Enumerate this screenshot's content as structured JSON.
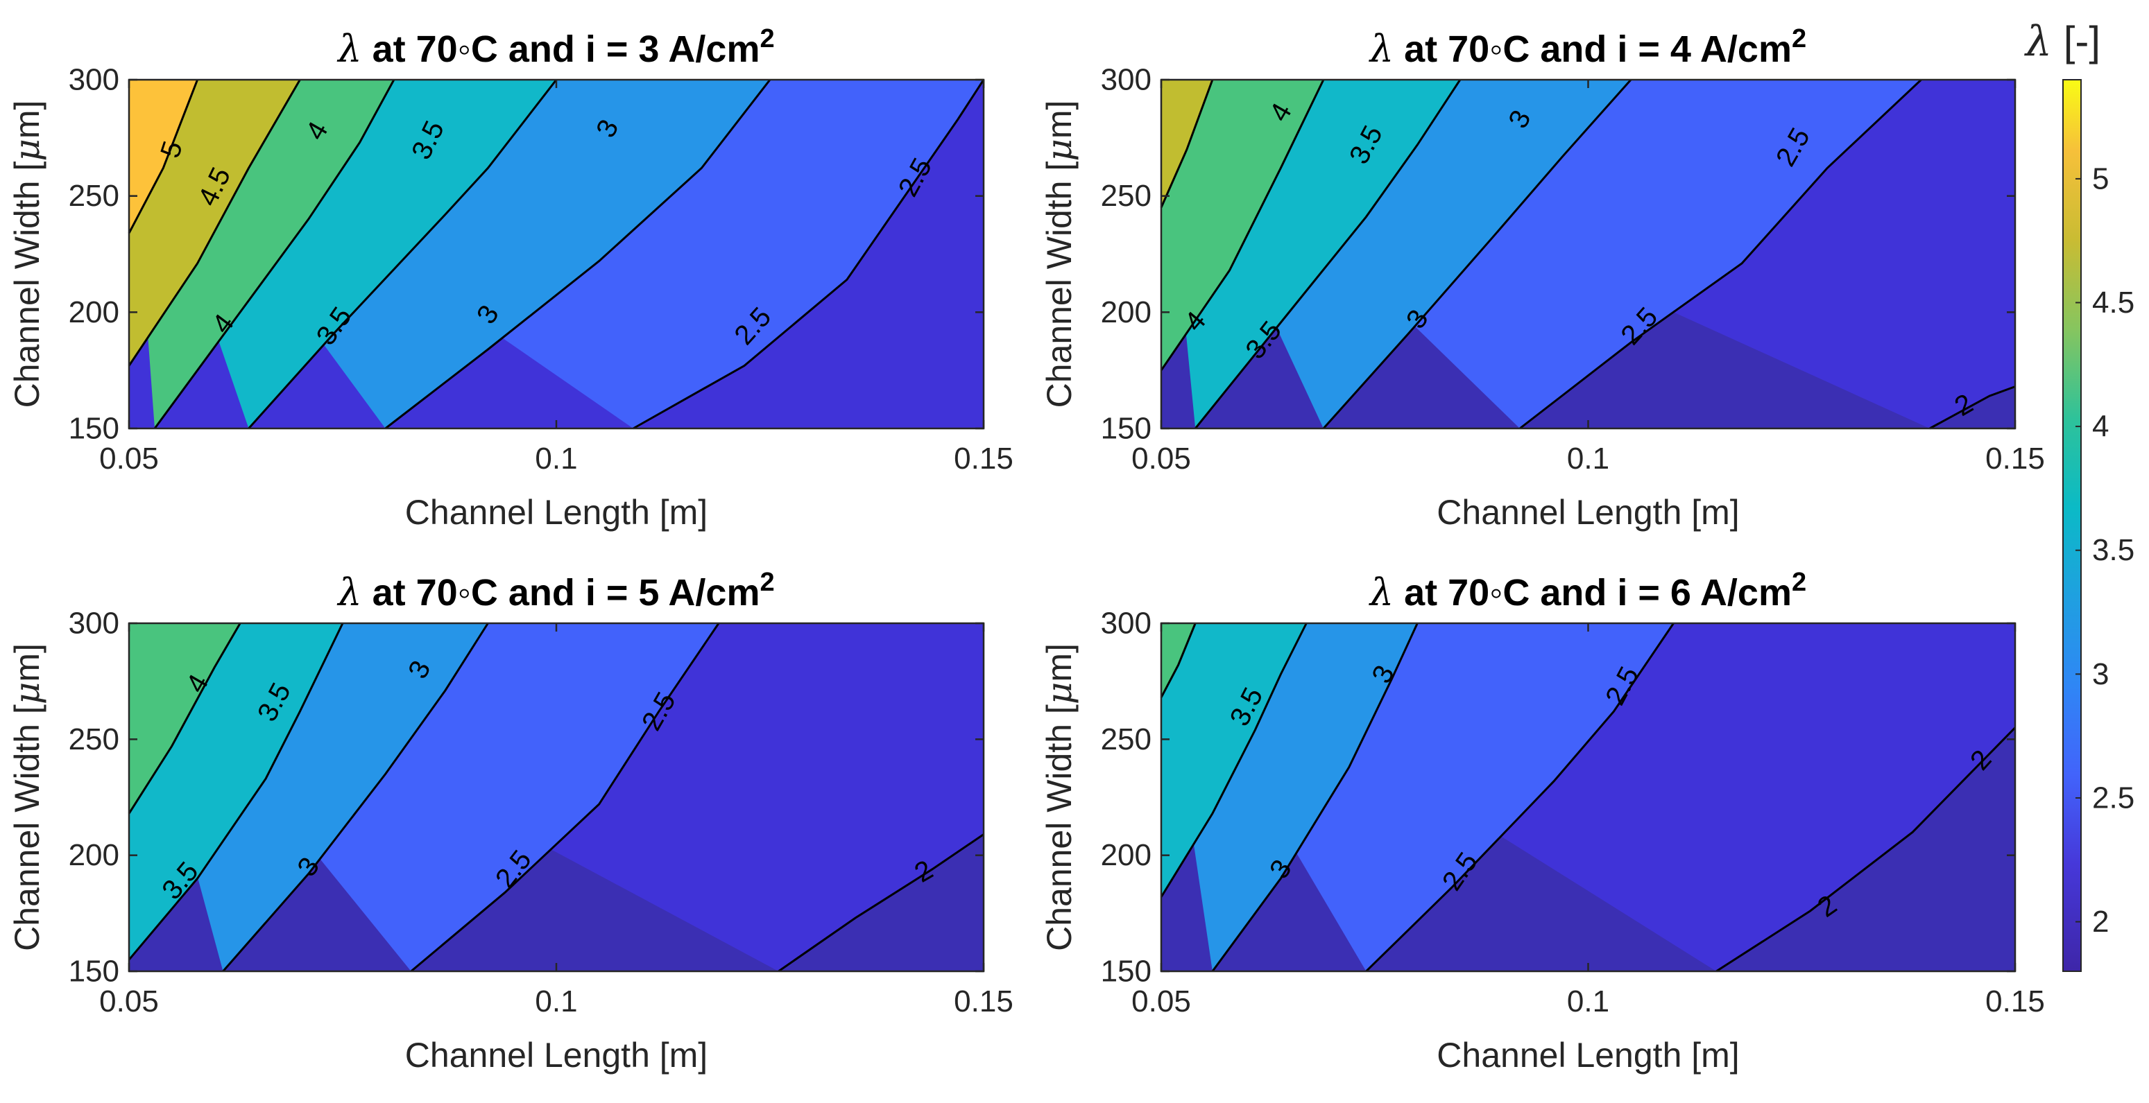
{
  "chart_data": [
    {
      "type": "contour",
      "title_prefix": "λ",
      "title_text": " at 70◦C and i = 3 A/cm",
      "title_sup": "2",
      "xlabel": "Channel Length [m]",
      "ylabel_main": "Channel Width [",
      "ylabel_mu": "μ",
      "ylabel_end": "m]",
      "xlim": [
        0.05,
        0.15
      ],
      "ylim": [
        150,
        300
      ],
      "xticks": [
        "0.05",
        "0.1",
        "0.15"
      ],
      "yticks": [
        "150",
        "200",
        "250",
        "300"
      ],
      "levels": [
        5,
        4.5,
        4,
        3.5,
        3,
        2.5
      ],
      "contour_lines": [
        {
          "level": "5",
          "points": [
            [
              0.05,
              234
            ],
            [
              0.054,
              262
            ],
            [
              0.058,
              300
            ]
          ]
        },
        {
          "level": "4.5",
          "points": [
            [
              0.05,
              177
            ],
            [
              0.058,
              221
            ],
            [
              0.064,
              262
            ],
            [
              0.07,
              300
            ]
          ]
        },
        {
          "level": "4",
          "points": [
            [
              0.053,
              150
            ],
            [
              0.061,
              190
            ],
            [
              0.071,
              240
            ],
            [
              0.077,
              273
            ],
            [
              0.081,
              300
            ]
          ]
        },
        {
          "level": "3.5",
          "points": [
            [
              0.064,
              150
            ],
            [
              0.074,
              191
            ],
            [
              0.087,
              242
            ],
            [
              0.092,
              262
            ],
            [
              0.1,
              300
            ]
          ]
        },
        {
          "level": "3",
          "points": [
            [
              0.08,
              150
            ],
            [
              0.092,
              184
            ],
            [
              0.105,
              222
            ],
            [
              0.117,
              262
            ],
            [
              0.125,
              300
            ]
          ]
        },
        {
          "level": "2.5",
          "points": [
            [
              0.109,
              150
            ],
            [
              0.122,
              177
            ],
            [
              0.134,
              214
            ],
            [
              0.147,
              283
            ],
            [
              0.15,
              300
            ]
          ]
        }
      ],
      "labels": [
        {
          "text": "5",
          "x": 0.055,
          "y": 270,
          "rot": -72
        },
        {
          "text": "4.5",
          "x": 0.06,
          "y": 254,
          "rot": -64
        },
        {
          "text": "4",
          "x": 0.072,
          "y": 278,
          "rot": -60
        },
        {
          "text": "4",
          "x": 0.061,
          "y": 195,
          "rot": -53
        },
        {
          "text": "3.5",
          "x": 0.085,
          "y": 274,
          "rot": -64
        },
        {
          "text": "3.5",
          "x": 0.074,
          "y": 194,
          "rot": -55
        },
        {
          "text": "3",
          "x": 0.106,
          "y": 279,
          "rot": -63
        },
        {
          "text": "3",
          "x": 0.092,
          "y": 199,
          "rot": -57
        },
        {
          "text": "2.5",
          "x": 0.142,
          "y": 258,
          "rot": -61
        },
        {
          "text": "2.5",
          "x": 0.123,
          "y": 194,
          "rot": -48
        }
      ]
    },
    {
      "type": "contour",
      "title_prefix": "λ",
      "title_text": " at 70◦C and i = 4 A/cm",
      "title_sup": "2",
      "xlabel": "Channel Length [m]",
      "ylabel_main": "Channel Width [",
      "ylabel_mu": "μ",
      "ylabel_end": "m]",
      "xlim": [
        0.05,
        0.15
      ],
      "ylim": [
        150,
        300
      ],
      "xticks": [
        "0.05",
        "0.1",
        "0.15"
      ],
      "yticks": [
        "150",
        "200",
        "250",
        "300"
      ],
      "levels": [
        4.5,
        4,
        3.5,
        3,
        2.5,
        2
      ],
      "contour_lines": [
        {
          "level": "4.5",
          "points": [
            [
              0.05,
              245
            ],
            [
              0.053,
              270
            ],
            [
              0.056,
              300
            ]
          ]
        },
        {
          "level": "4",
          "points": [
            [
              0.05,
              175
            ],
            [
              0.058,
              218
            ],
            [
              0.064,
              262
            ],
            [
              0.069,
              300
            ]
          ]
        },
        {
          "level": "3.5",
          "points": [
            [
              0.054,
              150
            ],
            [
              0.063,
              191
            ],
            [
              0.074,
              241
            ],
            [
              0.08,
              272
            ],
            [
              0.085,
              300
            ]
          ]
        },
        {
          "level": "3",
          "points": [
            [
              0.069,
              150
            ],
            [
              0.079,
              191
            ],
            [
              0.089,
              233
            ],
            [
              0.097,
              267
            ],
            [
              0.105,
              300
            ]
          ]
        },
        {
          "level": "2.5",
          "points": [
            [
              0.092,
              150
            ],
            [
              0.105,
              187
            ],
            [
              0.118,
              221
            ],
            [
              0.128,
              262
            ],
            [
              0.139,
              300
            ]
          ]
        },
        {
          "level": "2",
          "points": [
            [
              0.14,
              150
            ],
            [
              0.147,
              164
            ],
            [
              0.15,
              168
            ]
          ]
        }
      ],
      "labels": [
        {
          "text": "4",
          "x": 0.064,
          "y": 286,
          "rot": -60
        },
        {
          "text": "4",
          "x": 0.054,
          "y": 196,
          "rot": -50
        },
        {
          "text": "3.5",
          "x": 0.074,
          "y": 272,
          "rot": -62
        },
        {
          "text": "3.5",
          "x": 0.062,
          "y": 188,
          "rot": -52
        },
        {
          "text": "3",
          "x": 0.092,
          "y": 283,
          "rot": -62
        },
        {
          "text": "3",
          "x": 0.08,
          "y": 197,
          "rot": -56
        },
        {
          "text": "2.5",
          "x": 0.124,
          "y": 271,
          "rot": -60
        },
        {
          "text": "2.5",
          "x": 0.106,
          "y": 194,
          "rot": -48
        },
        {
          "text": "2",
          "x": 0.144,
          "y": 160,
          "rot": -30
        }
      ]
    },
    {
      "type": "contour",
      "title_prefix": "λ",
      "title_text": " at 70◦C and i = 5 A/cm",
      "title_sup": "2",
      "xlabel": "Channel Length [m]",
      "ylabel_main": "Channel Width [",
      "ylabel_mu": "μ",
      "ylabel_end": "m]",
      "xlim": [
        0.05,
        0.15
      ],
      "ylim": [
        150,
        300
      ],
      "xticks": [
        "0.05",
        "0.1",
        "0.15"
      ],
      "yticks": [
        "150",
        "200",
        "250",
        "300"
      ],
      "levels": [
        4,
        3.5,
        3,
        2.5,
        2
      ],
      "contour_lines": [
        {
          "level": "4",
          "points": [
            [
              0.05,
              218
            ],
            [
              0.055,
              247
            ],
            [
              0.06,
              281
            ],
            [
              0.063,
              300
            ]
          ]
        },
        {
          "level": "3.5",
          "points": [
            [
              0.05,
              155
            ],
            [
              0.058,
              190
            ],
            [
              0.066,
              233
            ],
            [
              0.07,
              262
            ],
            [
              0.075,
              300
            ]
          ]
        },
        {
          "level": "3",
          "points": [
            [
              0.061,
              150
            ],
            [
              0.071,
              192
            ],
            [
              0.08,
              235
            ],
            [
              0.087,
              271
            ],
            [
              0.092,
              300
            ]
          ]
        },
        {
          "level": "2.5",
          "points": [
            [
              0.083,
              150
            ],
            [
              0.094,
              184
            ],
            [
              0.105,
              222
            ],
            [
              0.112,
              262
            ],
            [
              0.119,
              300
            ]
          ]
        },
        {
          "level": "2",
          "points": [
            [
              0.126,
              150
            ],
            [
              0.135,
              173
            ],
            [
              0.144,
              194
            ],
            [
              0.15,
              209
            ]
          ]
        }
      ],
      "labels": [
        {
          "text": "4",
          "x": 0.058,
          "y": 274,
          "rot": -60
        },
        {
          "text": "3.5",
          "x": 0.067,
          "y": 266,
          "rot": -62
        },
        {
          "text": "3.5",
          "x": 0.056,
          "y": 189,
          "rot": -50
        },
        {
          "text": "3",
          "x": 0.084,
          "y": 280,
          "rot": -63
        },
        {
          "text": "3",
          "x": 0.071,
          "y": 195,
          "rot": -55
        },
        {
          "text": "2.5",
          "x": 0.112,
          "y": 262,
          "rot": -60
        },
        {
          "text": "2.5",
          "x": 0.095,
          "y": 194,
          "rot": -52
        },
        {
          "text": "2",
          "x": 0.143,
          "y": 193,
          "rot": -30
        }
      ]
    },
    {
      "type": "contour",
      "title_prefix": "λ",
      "title_text": " at 70◦C and i = 6 A/cm",
      "title_sup": "2",
      "xlabel": "Channel Length [m]",
      "ylabel_main": "Channel Width [",
      "ylabel_mu": "μ",
      "ylabel_end": "m]",
      "xlim": [
        0.05,
        0.15
      ],
      "ylim": [
        150,
        300
      ],
      "xticks": [
        "0.05",
        "0.1",
        "0.15"
      ],
      "yticks": [
        "150",
        "200",
        "250",
        "300"
      ],
      "levels": [
        4,
        3.5,
        3,
        2.5,
        2
      ],
      "contour_lines": [
        {
          "level": "4",
          "points": [
            [
              0.05,
              268
            ],
            [
              0.052,
              282
            ],
            [
              0.054,
              300
            ]
          ]
        },
        {
          "level": "3.5",
          "points": [
            [
              0.05,
              182
            ],
            [
              0.056,
              218
            ],
            [
              0.061,
              254
            ],
            [
              0.064,
              278
            ],
            [
              0.067,
              300
            ]
          ]
        },
        {
          "level": "3",
          "points": [
            [
              0.056,
              150
            ],
            [
              0.064,
              190
            ],
            [
              0.072,
              238
            ],
            [
              0.077,
              276
            ],
            [
              0.08,
              300
            ]
          ]
        },
        {
          "level": "2.5",
          "points": [
            [
              0.074,
              150
            ],
            [
              0.084,
              186
            ],
            [
              0.096,
              232
            ],
            [
              0.103,
              262
            ],
            [
              0.11,
              300
            ]
          ]
        },
        {
          "level": "2",
          "points": [
            [
              0.115,
              150
            ],
            [
              0.126,
              176
            ],
            [
              0.138,
              210
            ],
            [
              0.15,
              255
            ]
          ]
        }
      ],
      "labels": [
        {
          "text": "3.5",
          "x": 0.06,
          "y": 264,
          "rot": -63
        },
        {
          "text": "3",
          "x": 0.076,
          "y": 278,
          "rot": -63
        },
        {
          "text": "3",
          "x": 0.064,
          "y": 194,
          "rot": -55
        },
        {
          "text": "2.5",
          "x": 0.104,
          "y": 273,
          "rot": -62
        },
        {
          "text": "2.5",
          "x": 0.085,
          "y": 193,
          "rot": -55
        },
        {
          "text": "2",
          "x": 0.146,
          "y": 241,
          "rot": -48
        },
        {
          "text": "2",
          "x": 0.128,
          "y": 178,
          "rot": -35
        }
      ]
    }
  ],
  "colorbar": {
    "title_symbol": "λ",
    "title_unit": " [-]",
    "ticks": [
      "5",
      "4.5",
      "4",
      "3.5",
      "3",
      "2.5",
      "2"
    ],
    "tick_values": [
      5,
      4.5,
      4,
      3.5,
      3,
      2.5,
      2
    ],
    "range": [
      1.8,
      5.4
    ]
  },
  "colormap": [
    {
      "max": 2.0,
      "color": "#3b2fb3"
    },
    {
      "max": 2.5,
      "color": "#4033d8"
    },
    {
      "max": 3.0,
      "color": "#4262fb"
    },
    {
      "max": 3.5,
      "color": "#2695e8"
    },
    {
      "max": 4.0,
      "color": "#11b8c9"
    },
    {
      "max": 4.5,
      "color": "#49c47e"
    },
    {
      "max": 5.0,
      "color": "#c1bd30"
    },
    {
      "max": 9.0,
      "color": "#fdc23a"
    }
  ]
}
